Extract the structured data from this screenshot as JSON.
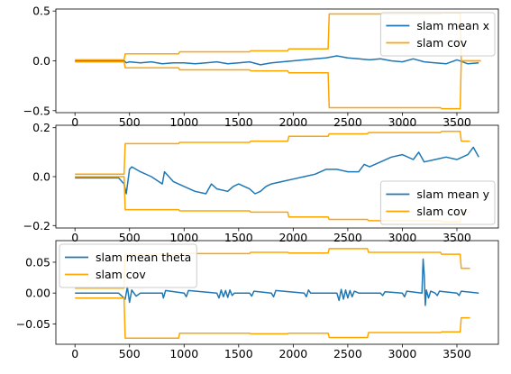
{
  "colors": {
    "mean": "#1f77b4",
    "cov": "#ffa500",
    "axes": "#000000",
    "background": "#ffffff"
  },
  "chart_data": [
    {
      "type": "line",
      "xlim": [
        -175,
        3880
      ],
      "ylim": [
        -0.52,
        0.52
      ],
      "xticks": [
        0,
        500,
        1000,
        1500,
        2000,
        2500,
        3000,
        3500
      ],
      "yticks": [
        -0.5,
        0.0,
        0.5
      ],
      "ytick_labels": [
        "−0.5",
        "0.0",
        "0.5"
      ],
      "grid": false,
      "legend": {
        "position": "upper-right"
      },
      "series": [
        {
          "name": "slam mean x",
          "role": "mean",
          "x": [
            0,
            100,
            200,
            300,
            450,
            470,
            500,
            600,
            700,
            800,
            900,
            1000,
            1100,
            1200,
            1300,
            1400,
            1500,
            1600,
            1700,
            1800,
            1900,
            2000,
            2100,
            2200,
            2300,
            2400,
            2500,
            2600,
            2700,
            2800,
            2900,
            3000,
            3100,
            3200,
            3300,
            3400,
            3500,
            3600,
            3700
          ],
          "y": [
            0.0,
            0.0,
            0.0,
            0.0,
            0.0,
            -0.02,
            -0.01,
            -0.02,
            -0.01,
            -0.03,
            -0.02,
            -0.02,
            -0.03,
            -0.02,
            -0.01,
            -0.03,
            -0.02,
            -0.01,
            -0.04,
            -0.02,
            -0.01,
            0.0,
            0.01,
            0.02,
            0.03,
            0.05,
            0.03,
            0.02,
            0.01,
            0.02,
            0.0,
            -0.01,
            0.02,
            -0.01,
            -0.02,
            -0.03,
            0.01,
            -0.03,
            -0.02
          ]
        },
        {
          "name": "slam cov",
          "role": "cov-upper",
          "x": [
            0,
            450,
            460,
            950,
            960,
            1600,
            1610,
            1950,
            1960,
            2320,
            2330,
            3350,
            3360,
            3530,
            3540,
            3720
          ],
          "y": [
            0.01,
            0.01,
            0.07,
            0.07,
            0.09,
            0.09,
            0.1,
            0.1,
            0.12,
            0.12,
            0.47,
            0.47,
            0.48,
            0.48,
            0.0,
            0.0
          ]
        },
        {
          "name": "",
          "role": "cov-lower",
          "x": [
            0,
            450,
            460,
            950,
            960,
            1600,
            1610,
            1950,
            1960,
            2320,
            2330,
            3350,
            3360,
            3530,
            3540,
            3720
          ],
          "y": [
            -0.01,
            -0.01,
            -0.07,
            -0.07,
            -0.09,
            -0.09,
            -0.1,
            -0.1,
            -0.12,
            -0.12,
            -0.47,
            -0.47,
            -0.48,
            -0.48,
            0.0,
            0.0
          ]
        }
      ]
    },
    {
      "type": "line",
      "xlim": [
        -175,
        3880
      ],
      "ylim": [
        -0.21,
        0.21
      ],
      "xticks": [
        0,
        500,
        1000,
        1500,
        2000,
        2500,
        3000,
        3500
      ],
      "yticks": [
        -0.2,
        0.0,
        0.2
      ],
      "ytick_labels": [
        "−0.2",
        "0.0",
        "0.2"
      ],
      "grid": false,
      "legend": {
        "position": "lower-right"
      },
      "series": [
        {
          "name": "slam mean y",
          "role": "mean",
          "x": [
            0,
            200,
            400,
            450,
            470,
            500,
            520,
            600,
            700,
            800,
            820,
            900,
            1000,
            1100,
            1200,
            1250,
            1300,
            1400,
            1450,
            1500,
            1600,
            1650,
            1700,
            1750,
            1800,
            1900,
            2000,
            2100,
            2200,
            2300,
            2400,
            2500,
            2600,
            2650,
            2700,
            2800,
            2900,
            3000,
            3100,
            3150,
            3200,
            3300,
            3400,
            3500,
            3600,
            3650,
            3700
          ],
          "y": [
            -0.005,
            -0.005,
            -0.005,
            -0.03,
            -0.07,
            0.03,
            0.04,
            0.02,
            0.0,
            -0.03,
            0.02,
            -0.02,
            -0.04,
            -0.06,
            -0.07,
            -0.03,
            -0.05,
            -0.06,
            -0.04,
            -0.03,
            -0.05,
            -0.07,
            -0.06,
            -0.04,
            -0.03,
            -0.02,
            -0.01,
            0.0,
            0.01,
            0.03,
            0.03,
            0.02,
            0.02,
            0.05,
            0.04,
            0.06,
            0.08,
            0.09,
            0.07,
            0.1,
            0.06,
            0.07,
            0.08,
            0.07,
            0.09,
            0.12,
            0.08
          ]
        },
        {
          "name": "slam cov",
          "role": "cov-upper",
          "x": [
            0,
            450,
            460,
            950,
            960,
            1600,
            1610,
            1950,
            1960,
            2320,
            2330,
            2680,
            2690,
            3350,
            3360,
            3530,
            3540,
            3620
          ],
          "y": [
            0.01,
            0.01,
            0.135,
            0.135,
            0.14,
            0.14,
            0.145,
            0.145,
            0.165,
            0.165,
            0.175,
            0.175,
            0.18,
            0.18,
            0.185,
            0.185,
            0.145,
            0.145
          ]
        },
        {
          "name": "",
          "role": "cov-lower",
          "x": [
            0,
            450,
            460,
            950,
            960,
            1600,
            1610,
            1950,
            1960,
            2320,
            2330,
            2680,
            2690,
            3350,
            3360,
            3530,
            3540,
            3620
          ],
          "y": [
            0.0,
            0.0,
            -0.135,
            -0.135,
            -0.14,
            -0.14,
            -0.145,
            -0.145,
            -0.165,
            -0.165,
            -0.175,
            -0.175,
            -0.18,
            -0.18,
            -0.185,
            -0.185,
            -0.145,
            -0.145
          ]
        }
      ]
    },
    {
      "type": "line",
      "xlim": [
        -175,
        3880
      ],
      "ylim": [
        -0.083,
        0.085
      ],
      "xticks": [
        0,
        500,
        1000,
        1500,
        2000,
        2500,
        3000,
        3500
      ],
      "yticks": [
        -0.05,
        0.0,
        0.05
      ],
      "ytick_labels": [
        "−0.05",
        "0.00",
        "0.05"
      ],
      "grid": false,
      "legend": {
        "position": "upper-left"
      },
      "series": [
        {
          "name": "slam mean theta",
          "role": "mean",
          "x": [
            0,
            400,
            460,
            480,
            500,
            520,
            560,
            600,
            800,
            810,
            830,
            1000,
            1020,
            1040,
            1300,
            1320,
            1340,
            1360,
            1380,
            1400,
            1420,
            1440,
            1460,
            1600,
            1620,
            1640,
            1800,
            1820,
            1840,
            2100,
            2120,
            2140,
            2160,
            2400,
            2420,
            2440,
            2460,
            2480,
            2500,
            2520,
            2540,
            2560,
            2600,
            2800,
            2820,
            2840,
            3000,
            3020,
            3040,
            3180,
            3190,
            3200,
            3210,
            3220,
            3240,
            3260,
            3300,
            3320,
            3340,
            3500,
            3520,
            3540,
            3700
          ],
          "y": [
            0.0,
            0.0,
            -0.01,
            0.01,
            -0.015,
            0.005,
            -0.005,
            0.0,
            0.0,
            -0.008,
            0.004,
            0.0,
            -0.006,
            0.004,
            0.0,
            -0.008,
            0.005,
            -0.006,
            0.004,
            -0.007,
            0.005,
            -0.004,
            0.0,
            0.0,
            -0.005,
            0.003,
            0.0,
            -0.006,
            0.004,
            0.0,
            -0.006,
            0.005,
            0.0,
            0.0,
            -0.012,
            0.006,
            -0.01,
            0.005,
            -0.008,
            0.004,
            -0.006,
            0.003,
            0.0,
            0.0,
            -0.004,
            0.002,
            0.0,
            -0.006,
            0.003,
            0.0,
            0.055,
            0.03,
            -0.02,
            0.005,
            -0.008,
            0.003,
            0.0,
            -0.004,
            0.003,
            0.0,
            -0.004,
            0.003,
            0.0
          ]
        },
        {
          "name": "slam cov",
          "role": "cov-upper",
          "x": [
            0,
            450,
            460,
            950,
            960,
            1600,
            1610,
            1950,
            1960,
            2320,
            2330,
            2680,
            2690,
            3350,
            3360,
            3530,
            3540,
            3620
          ],
          "y": [
            0.008,
            0.008,
            0.063,
            0.063,
            0.064,
            0.064,
            0.066,
            0.066,
            0.065,
            0.065,
            0.072,
            0.072,
            0.066,
            0.066,
            0.063,
            0.063,
            0.04,
            0.04
          ]
        },
        {
          "name": "",
          "role": "cov-lower",
          "x": [
            0,
            450,
            460,
            950,
            960,
            1600,
            1610,
            1950,
            1960,
            2320,
            2330,
            2680,
            2690,
            3350,
            3360,
            3530,
            3540,
            3620
          ],
          "y": [
            -0.008,
            -0.008,
            -0.073,
            -0.073,
            -0.065,
            -0.065,
            -0.066,
            -0.066,
            -0.065,
            -0.065,
            -0.072,
            -0.072,
            -0.064,
            -0.064,
            -0.063,
            -0.063,
            -0.04,
            -0.04
          ]
        }
      ]
    }
  ]
}
